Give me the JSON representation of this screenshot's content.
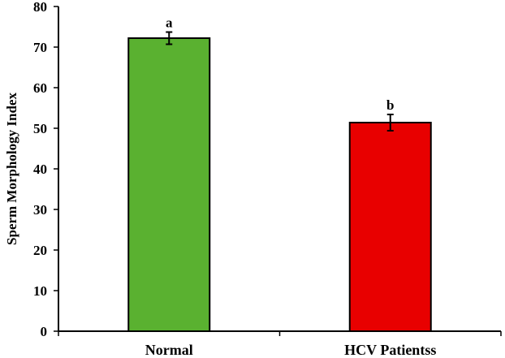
{
  "chart_data": {
    "type": "bar",
    "categories": [
      "Normal",
      "HCV Patientss"
    ],
    "values": [
      72.2,
      51.4
    ],
    "errors": [
      1.5,
      2.0
    ],
    "significance_labels": [
      "a",
      "b"
    ],
    "bar_colors": [
      "#5AB130",
      "#E80000"
    ],
    "title": "",
    "xlabel": "",
    "ylabel": "Sperm Morphology Index",
    "ylim": [
      0,
      80
    ],
    "yticks": [
      0,
      10,
      20,
      30,
      40,
      50,
      60,
      70,
      80
    ],
    "grid": false,
    "legend": "none"
  }
}
